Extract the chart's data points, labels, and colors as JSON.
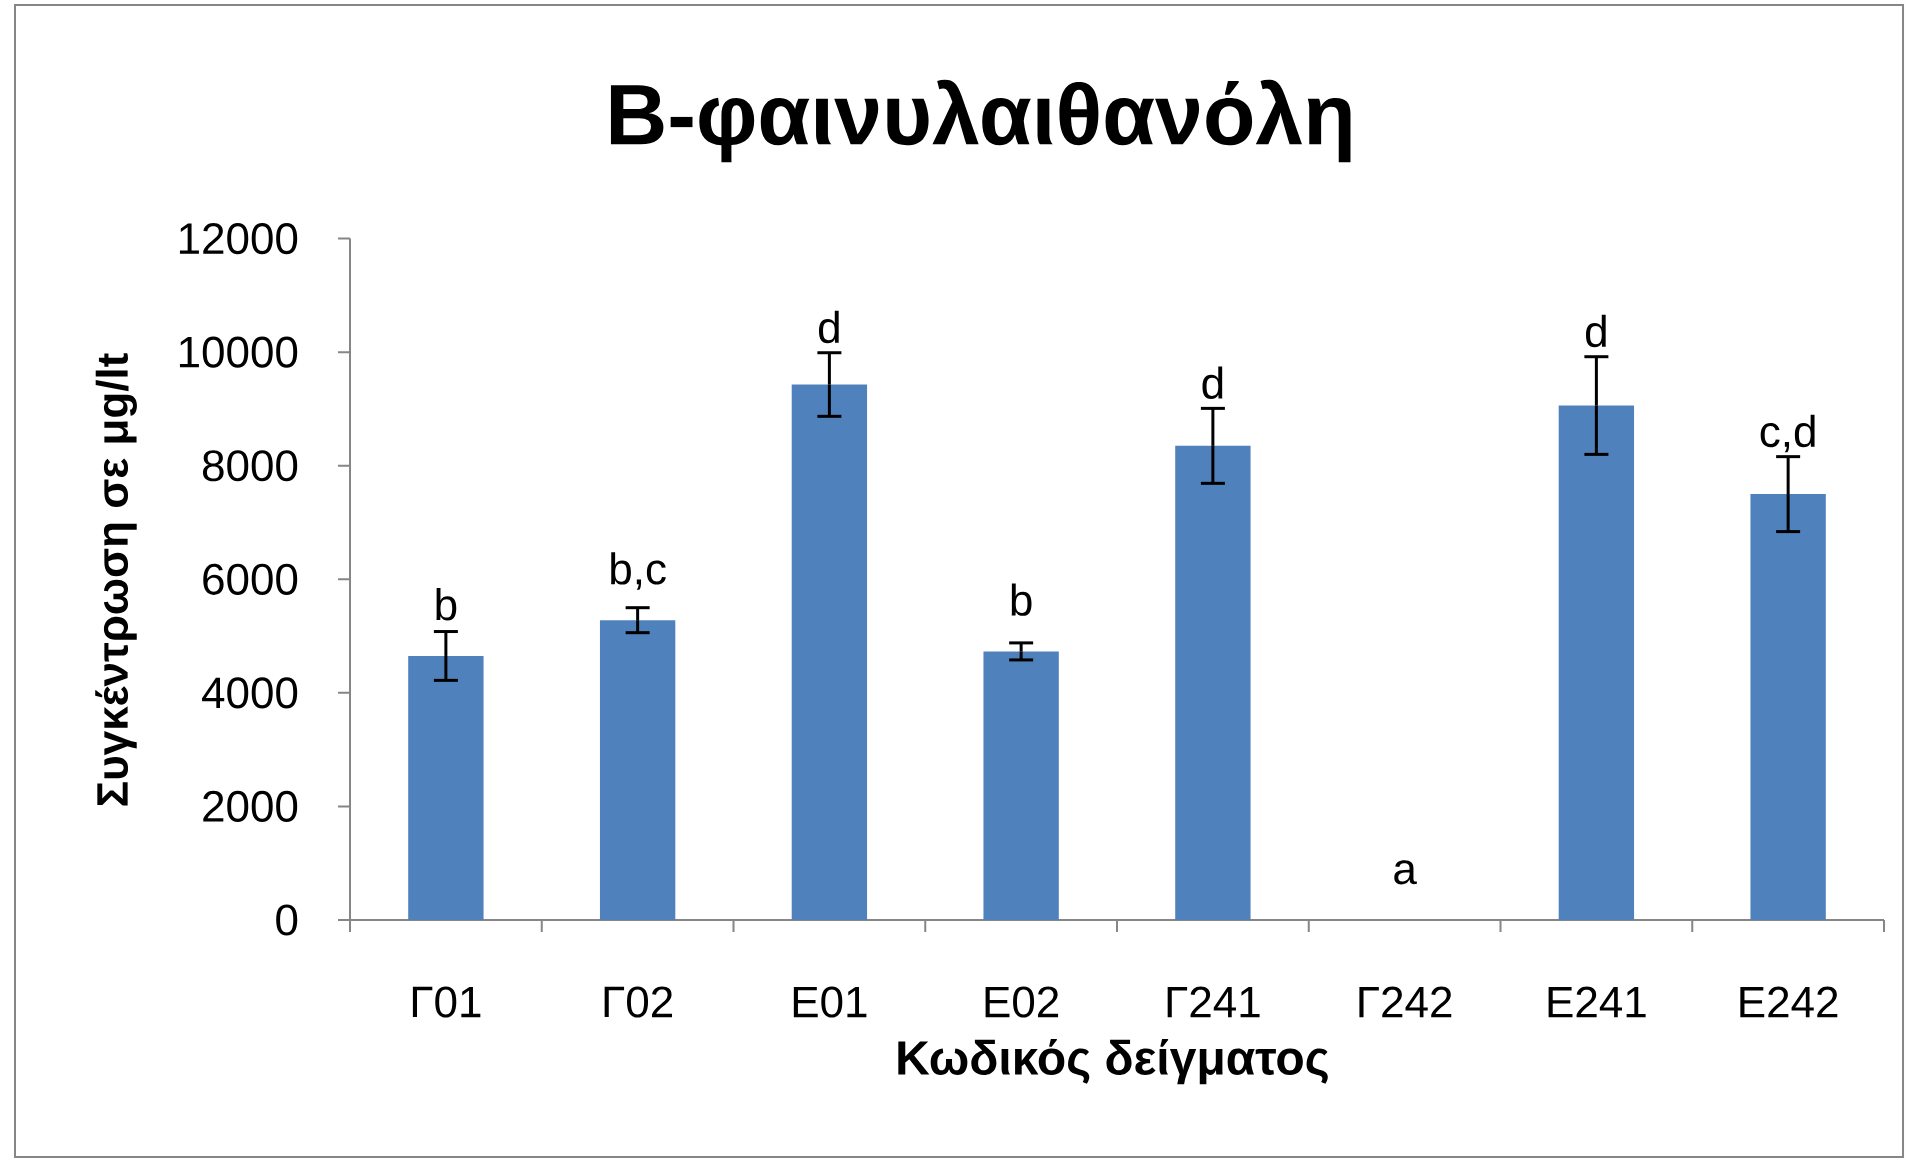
{
  "chart_data": {
    "type": "bar",
    "title": "Β-φαινυλαιθανόλη",
    "xlabel": "Κωδικός δείγματος",
    "ylabel": "Συγκέντρωση σε μg/lt",
    "categories": [
      "Γ01",
      "Γ02",
      "Ε01",
      "Ε02",
      "Γ241",
      "Γ242",
      "Ε241",
      "Ε242"
    ],
    "values": [
      4650,
      5280,
      9430,
      4730,
      8350,
      0,
      9060,
      7500
    ],
    "errors": [
      430,
      220,
      560,
      150,
      660,
      null,
      860,
      660
    ],
    "color": "#4f81bd",
    "ylim": [
      0,
      12000
    ],
    "yticks": [
      0,
      2000,
      4000,
      6000,
      8000,
      10000,
      12000
    ],
    "annotations": [
      {
        "text": "b",
        "x": "Γ01",
        "y": 4650
      },
      {
        "text": "b,c",
        "x": "Γ02",
        "y": 5280
      },
      {
        "text": "d",
        "x": "Ε01",
        "y": 9430
      },
      {
        "text": "b",
        "x": "Ε02",
        "y": 4730
      },
      {
        "text": "d",
        "x": "Γ241",
        "y": 8350
      },
      {
        "text": "a",
        "x": "Γ242",
        "y": 0
      },
      {
        "text": "d",
        "x": "Ε241",
        "y": 9060
      },
      {
        "text": "c,d",
        "x": "Ε242",
        "y": 7500
      }
    ]
  }
}
